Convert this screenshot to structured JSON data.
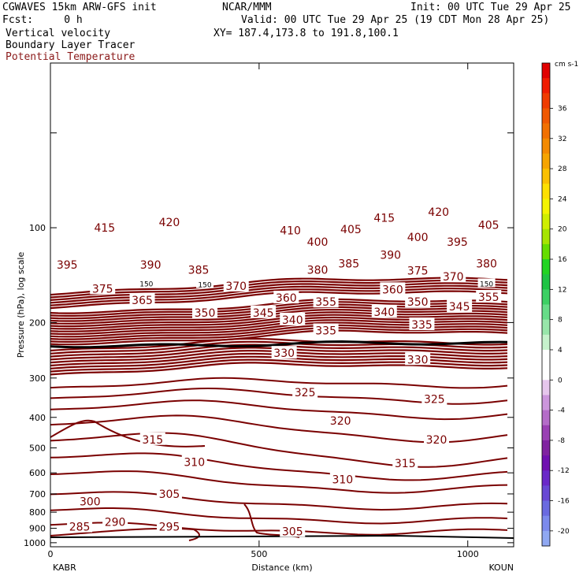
{
  "header": {
    "model": "CGWAVES 15km ARW-GFS init",
    "org": "NCAR/MMM",
    "init": "Init: 00 UTC Tue 29 Apr 25",
    "fcst": "Fcst:     0 h",
    "valid": "Valid: 00 UTC Tue 29 Apr 25 (19 CDT Mon 28 Apr 25)",
    "xy": "XY= 187.4,173.8 to 191.8,100.1",
    "field1": "Vertical velocity",
    "field2": "Boundary Layer Tracer",
    "field3": "Potential Temperature"
  },
  "colors": {
    "theta_contour": "#7a0000",
    "tracer_contour": "#000000"
  },
  "chart_data": {
    "type": "contour-cross-section",
    "xlabel": "Distance (km)",
    "ylabel": "Pressure (hPa), log scale",
    "x_ticks": [
      0,
      500,
      1000
    ],
    "x_range": [
      0,
      1110
    ],
    "y_ticks": [
      100,
      200,
      300,
      400,
      500,
      600,
      700,
      800,
      900,
      1000
    ],
    "y_range": [
      1030,
      30
    ],
    "y_scale": "log",
    "left_endpoint": "KABR",
    "right_endpoint": "KOUN",
    "tracer_label": "150",
    "theta_labels": [
      {
        "v": "420",
        "x": 285,
        "p": 96
      },
      {
        "v": "415",
        "x": 130,
        "p": 100
      },
      {
        "v": "415",
        "x": 800,
        "p": 93
      },
      {
        "v": "420",
        "x": 930,
        "p": 89
      },
      {
        "v": "410",
        "x": 575,
        "p": 102
      },
      {
        "v": "405",
        "x": 720,
        "p": 101
      },
      {
        "v": "405",
        "x": 1050,
        "p": 98
      },
      {
        "v": "400",
        "x": 640,
        "p": 111
      },
      {
        "v": "400",
        "x": 880,
        "p": 107
      },
      {
        "v": "395",
        "x": 40,
        "p": 131
      },
      {
        "v": "395",
        "x": 975,
        "p": 111
      },
      {
        "v": "390",
        "x": 240,
        "p": 131
      },
      {
        "v": "390",
        "x": 815,
        "p": 122
      },
      {
        "v": "385",
        "x": 355,
        "p": 136
      },
      {
        "v": "385",
        "x": 715,
        "p": 130
      },
      {
        "v": "380",
        "x": 640,
        "p": 136
      },
      {
        "v": "380",
        "x": 1045,
        "p": 130
      },
      {
        "v": "375",
        "x": 125,
        "p": 156
      },
      {
        "v": "375",
        "x": 880,
        "p": 137
      },
      {
        "v": "370",
        "x": 445,
        "p": 153
      },
      {
        "v": "370",
        "x": 965,
        "p": 143
      },
      {
        "v": "365",
        "x": 220,
        "p": 170
      },
      {
        "v": "360",
        "x": 565,
        "p": 167
      },
      {
        "v": "360",
        "x": 820,
        "p": 157
      },
      {
        "v": "355",
        "x": 660,
        "p": 172
      },
      {
        "v": "355",
        "x": 1050,
        "p": 166
      },
      {
        "v": "350",
        "x": 370,
        "p": 186
      },
      {
        "v": "350",
        "x": 880,
        "p": 172
      },
      {
        "v": "345",
        "x": 510,
        "p": 186
      },
      {
        "v": "345",
        "x": 980,
        "p": 178
      },
      {
        "v": "340",
        "x": 580,
        "p": 196
      },
      {
        "v": "340",
        "x": 800,
        "p": 185
      },
      {
        "v": "335",
        "x": 660,
        "p": 212
      },
      {
        "v": "335",
        "x": 890,
        "p": 203
      },
      {
        "v": "330",
        "x": 560,
        "p": 250
      },
      {
        "v": "330",
        "x": 880,
        "p": 262
      },
      {
        "v": "325",
        "x": 610,
        "p": 333
      },
      {
        "v": "325",
        "x": 920,
        "p": 350
      },
      {
        "v": "320",
        "x": 695,
        "p": 410
      },
      {
        "v": "320",
        "x": 925,
        "p": 470
      },
      {
        "v": "315",
        "x": 245,
        "p": 470
      },
      {
        "v": "315",
        "x": 850,
        "p": 560
      },
      {
        "v": "310",
        "x": 345,
        "p": 555
      },
      {
        "v": "310",
        "x": 700,
        "p": 630
      },
      {
        "v": "305",
        "x": 285,
        "p": 700
      },
      {
        "v": "305",
        "x": 580,
        "p": 920
      },
      {
        "v": "300",
        "x": 95,
        "p": 740
      },
      {
        "v": "295",
        "x": 285,
        "p": 890
      },
      {
        "v": "290",
        "x": 155,
        "p": 860
      },
      {
        "v": "285",
        "x": 70,
        "p": 890
      }
    ],
    "tracer_label_positions": [
      {
        "x": 230,
        "p": 150
      },
      {
        "x": 370,
        "p": 151
      },
      {
        "x": 1045,
        "p": 150
      }
    ],
    "colorbar": {
      "units": "cm s-1",
      "labels": [
        "36",
        "32",
        "28",
        "24",
        "20",
        "16",
        "12",
        "8",
        "4",
        "0",
        "-4",
        "-8",
        "-12",
        "-16",
        "-20"
      ],
      "colors": [
        "#e00000",
        "#f01c00",
        "#f03c00",
        "#f05800",
        "#f27000",
        "#f48a00",
        "#f6a400",
        "#fac000",
        "#fde000",
        "#f4f400",
        "#cfee00",
        "#a6e400",
        "#66dd00",
        "#22d422",
        "#1ec444",
        "#3cd064",
        "#66dc88",
        "#98e6aa",
        "#c6f2cc",
        "#ffffff",
        "#ffffff",
        "#e6c6ec",
        "#cc96dc",
        "#b46cc8",
        "#9a40b4",
        "#8022a0",
        "#7010b0",
        "#6a28c8",
        "#6848d4",
        "#6a6ae0",
        "#7c8aec",
        "#90a8f2"
      ]
    }
  }
}
